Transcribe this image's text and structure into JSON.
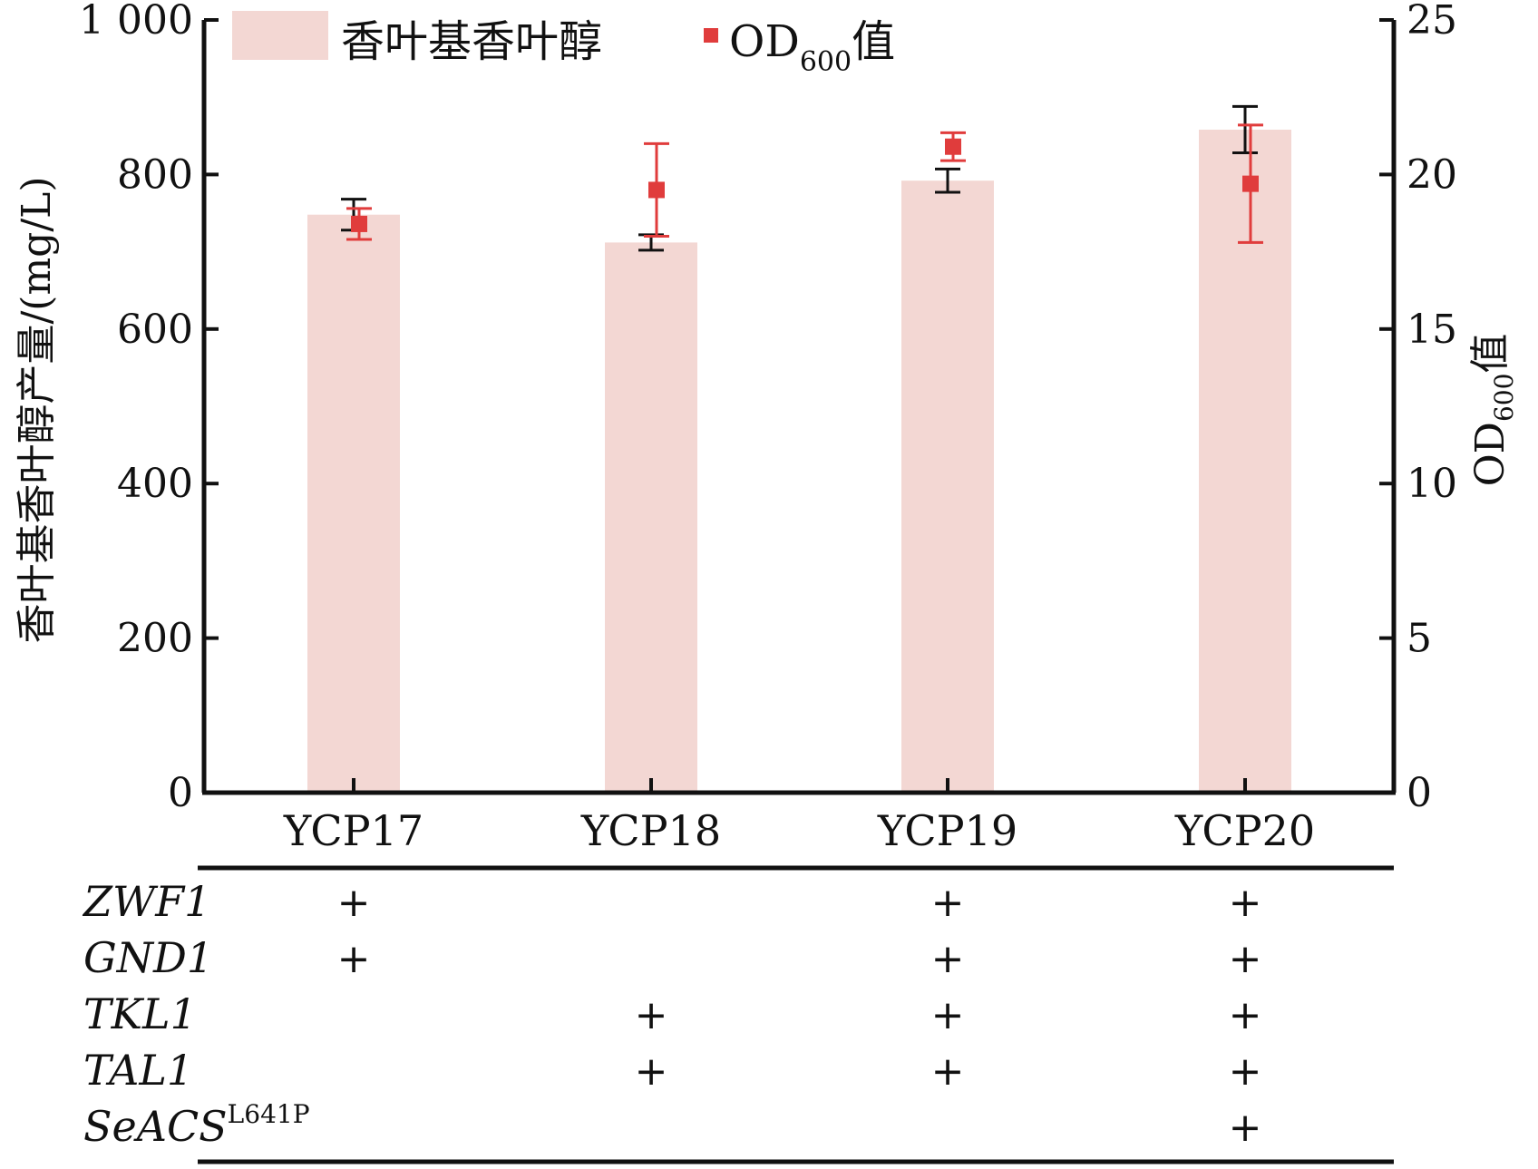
{
  "chart_data": {
    "type": "bar",
    "categories": [
      "YCP17",
      "YCP18",
      "YCP19",
      "YCP20"
    ],
    "ylabel": "香叶基香叶醇产量/(mg/L)",
    "y2label": {
      "main": "OD",
      "sub": "600",
      "suffix": "值"
    },
    "ylim": [
      0,
      1000
    ],
    "y2lim": [
      0,
      25
    ],
    "y_ticks": [
      "0",
      "200",
      "400",
      "600",
      "800",
      "1 000"
    ],
    "y_tick_values": [
      0,
      200,
      400,
      600,
      800,
      1000
    ],
    "y2_ticks": [
      "0",
      "5",
      "10",
      "15",
      "20",
      "25"
    ],
    "y2_tick_values": [
      0,
      5,
      10,
      15,
      20,
      25
    ],
    "legend": {
      "position": "top",
      "bar_label": "香叶基香叶醇",
      "point_label": {
        "main": "OD",
        "sub": "600",
        "suffix": "值"
      }
    },
    "series": [
      {
        "name": "香叶基香叶醇",
        "axis": "left",
        "kind": "bar",
        "color": "#f3d7d3",
        "errcolor": "#111111",
        "values": [
          748,
          712,
          792,
          858
        ],
        "errors": [
          20,
          10,
          15,
          30
        ]
      },
      {
        "name": "OD600值",
        "axis": "right",
        "kind": "point",
        "color": "#e03c3c",
        "values": [
          18.4,
          19.5,
          20.9,
          19.7
        ],
        "errors": [
          0.5,
          1.5,
          0.45,
          1.9
        ]
      }
    ],
    "grid": false,
    "genotype_table": {
      "rows": [
        {
          "gene": "ZWF1",
          "marks": [
            "+",
            "",
            "+",
            "+"
          ]
        },
        {
          "gene": "GND1",
          "marks": [
            "+",
            "",
            "+",
            "+"
          ]
        },
        {
          "gene": "TKL1",
          "marks": [
            "",
            "+",
            "+",
            "+"
          ]
        },
        {
          "gene": "TAL1",
          "marks": [
            "",
            "+",
            "+",
            "+"
          ]
        },
        {
          "gene": "SeACS",
          "sup": "L641P",
          "marks": [
            "",
            "",
            "",
            "+"
          ]
        }
      ]
    }
  }
}
